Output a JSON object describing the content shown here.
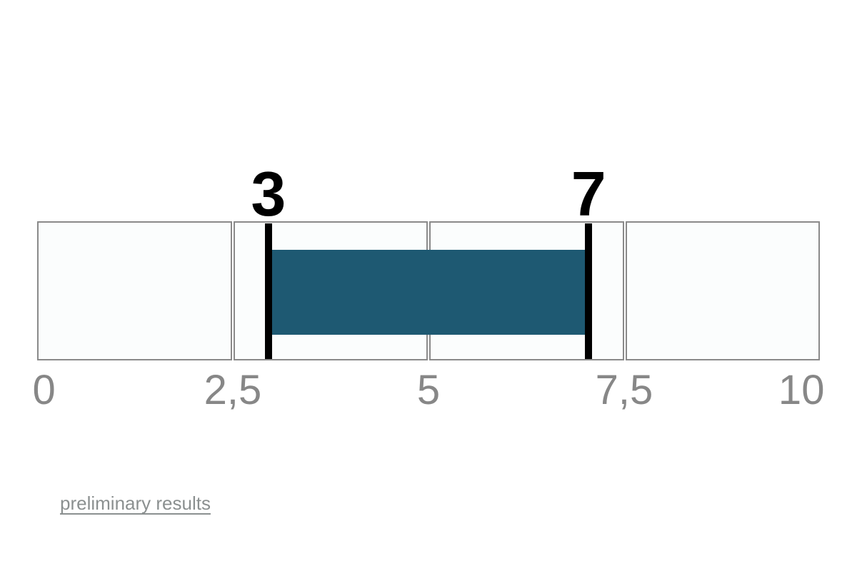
{
  "page": {
    "background": "#ffffff"
  },
  "chart_data": {
    "type": "bar",
    "subtype": "horizontal-range-interval",
    "scale_min": 0,
    "scale_max": 10,
    "tick_values": [
      0,
      2.5,
      5,
      7.5,
      10
    ],
    "tick_labels": [
      "0",
      "2,5",
      "5",
      "7,5",
      "10"
    ],
    "segments": 4,
    "range": {
      "start": 3,
      "end": 7
    },
    "range_start_label": "3",
    "range_end_label": "7",
    "bar_color": "#1e5972",
    "marker_color": "#000000",
    "cell_background": "#fbfdfd",
    "cell_border_color": "#8a8a8a",
    "axis_label_color": "#878787",
    "grid": "segmented-cells",
    "legend": "none"
  },
  "footer": {
    "link_label": "preliminary results"
  }
}
